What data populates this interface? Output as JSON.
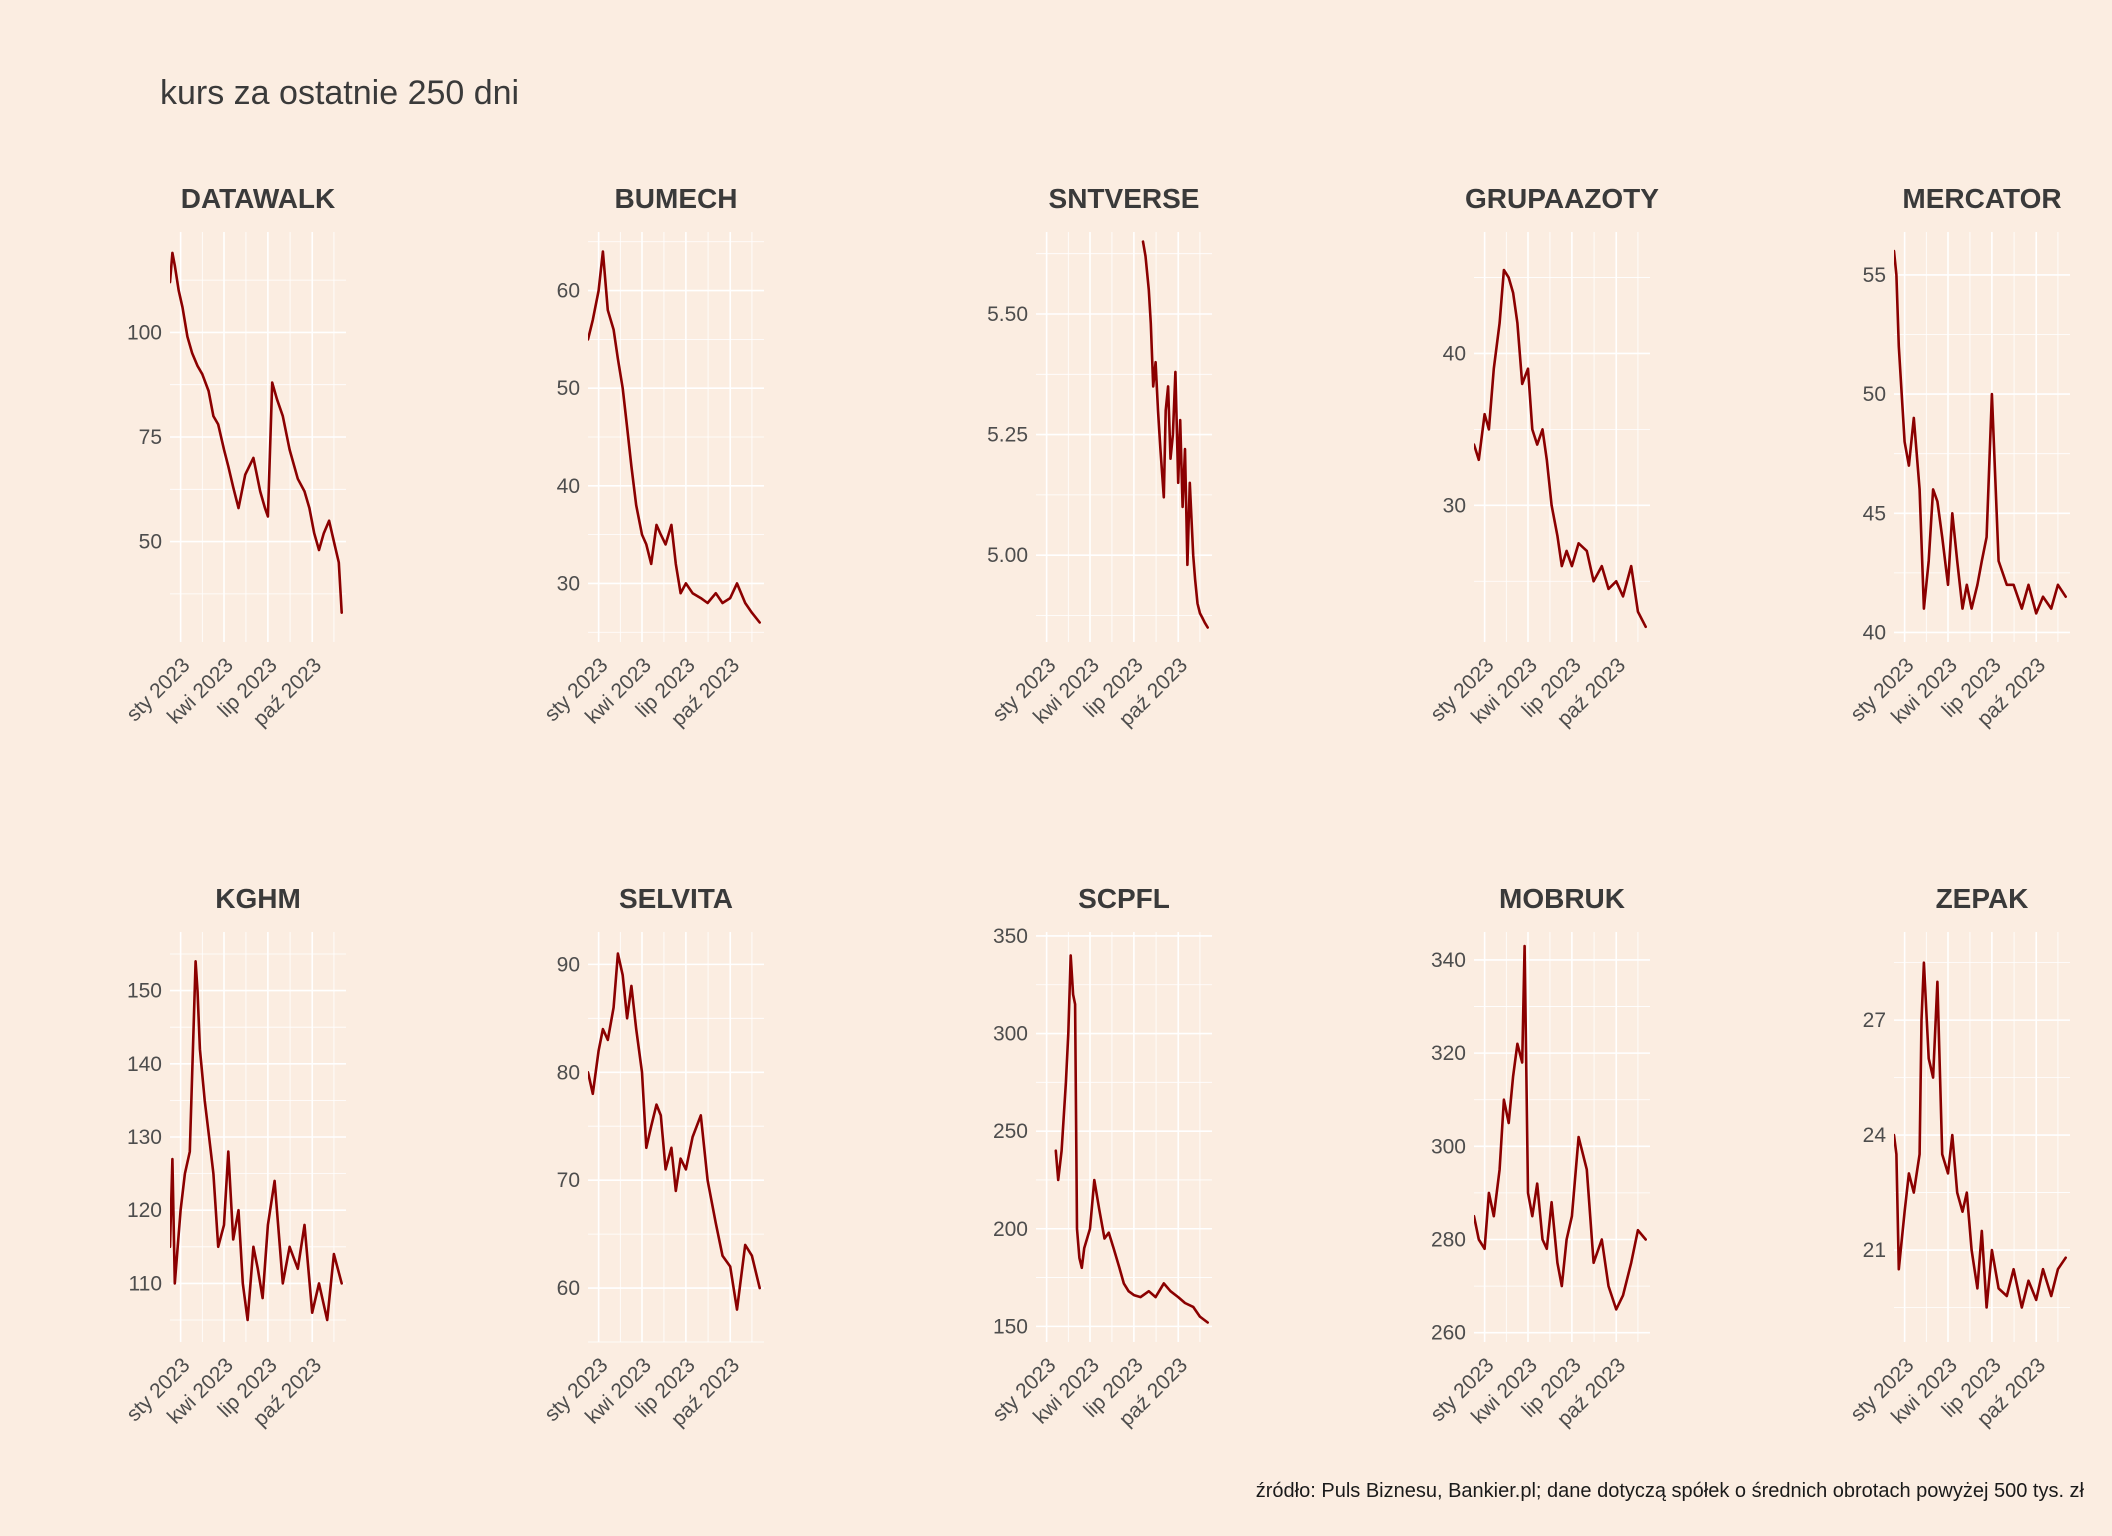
{
  "title": "kurs za ostatnie 250 dni",
  "caption": "źródło: Puls Biznesu, Bankier.pl; dane dotyczą spółek o średnich obrotach powyżej 500 tys. zł",
  "colors": {
    "background": "#FBEDE1",
    "series": "#8B0000",
    "grid": "#FFFFFF"
  },
  "chart_data": [
    {
      "type": "line",
      "title": "DATAWALK",
      "x_tick_labels": [
        "sty 2023",
        "kwi 2023",
        "lip 2023",
        "paź 2023"
      ],
      "x_tick_dates": [
        "2023-01-01",
        "2023-04-01",
        "2023-07-01",
        "2023-10-01"
      ],
      "xlim": [
        "2022-12-10",
        "2023-12-10"
      ],
      "ylim": [
        26,
        124
      ],
      "y_ticks": [
        50,
        75,
        100
      ],
      "series": [
        {
          "x": [
            "2022-12-10",
            "2022-12-15",
            "2022-12-20",
            "2022-12-28",
            "2023-01-05",
            "2023-01-15",
            "2023-01-25",
            "2023-02-05",
            "2023-02-15",
            "2023-02-28",
            "2023-03-10",
            "2023-03-20",
            "2023-04-01",
            "2023-04-10",
            "2023-04-20",
            "2023-05-01",
            "2023-05-15",
            "2023-06-01",
            "2023-06-15",
            "2023-06-25",
            "2023-07-01",
            "2023-07-10",
            "2023-07-20",
            "2023-08-01",
            "2023-08-15",
            "2023-09-01",
            "2023-09-15",
            "2023-09-25",
            "2023-10-05",
            "2023-10-15",
            "2023-10-25",
            "2023-11-05",
            "2023-11-15",
            "2023-11-25",
            "2023-12-01"
          ],
          "y": [
            112,
            119,
            116,
            110,
            106,
            99,
            95,
            92,
            90,
            86,
            80,
            78,
            72,
            68,
            63,
            58,
            66,
            70,
            62,
            58,
            56,
            88,
            84,
            80,
            72,
            65,
            62,
            58,
            52,
            48,
            52,
            55,
            50,
            45,
            33
          ]
        }
      ]
    },
    {
      "type": "line",
      "title": "BUMECH",
      "x_tick_labels": [
        "sty 2023",
        "kwi 2023",
        "lip 2023",
        "paź 2023"
      ],
      "x_tick_dates": [
        "2023-01-01",
        "2023-04-01",
        "2023-07-01",
        "2023-10-01"
      ],
      "xlim": [
        "2022-12-10",
        "2023-12-10"
      ],
      "ylim": [
        24,
        66
      ],
      "y_ticks": [
        30,
        40,
        50,
        60
      ],
      "series": [
        {
          "x": [
            "2022-12-10",
            "2022-12-20",
            "2023-01-01",
            "2023-01-10",
            "2023-01-20",
            "2023-02-01",
            "2023-02-10",
            "2023-02-20",
            "2023-03-01",
            "2023-03-10",
            "2023-03-20",
            "2023-04-01",
            "2023-04-10",
            "2023-04-20",
            "2023-05-01",
            "2023-05-10",
            "2023-05-20",
            "2023-06-01",
            "2023-06-10",
            "2023-06-20",
            "2023-07-01",
            "2023-07-15",
            "2023-08-01",
            "2023-08-15",
            "2023-09-01",
            "2023-09-15",
            "2023-10-01",
            "2023-10-15",
            "2023-11-01",
            "2023-11-15",
            "2023-12-01"
          ],
          "y": [
            55,
            57,
            60,
            64,
            58,
            56,
            53,
            50,
            46,
            42,
            38,
            35,
            34,
            32,
            36,
            35,
            34,
            36,
            32,
            29,
            30,
            29,
            28.5,
            28,
            29,
            28,
            28.5,
            30,
            28,
            27,
            26
          ]
        }
      ]
    },
    {
      "type": "line",
      "title": "SNTVERSE",
      "x_tick_labels": [
        "sty 2023",
        "kwi 2023",
        "lip 2023",
        "paź 2023"
      ],
      "x_tick_dates": [
        "2023-01-01",
        "2023-04-01",
        "2023-07-01",
        "2023-10-01"
      ],
      "xlim": [
        "2022-12-10",
        "2023-12-10"
      ],
      "ylim": [
        4.82,
        5.67
      ],
      "y_ticks": [
        5.0,
        5.25,
        5.5
      ],
      "series": [
        {
          "x": [
            "2023-07-20",
            "2023-07-25",
            "2023-08-01",
            "2023-08-05",
            "2023-08-10",
            "2023-08-15",
            "2023-08-20",
            "2023-08-25",
            "2023-09-01",
            "2023-09-05",
            "2023-09-10",
            "2023-09-15",
            "2023-09-20",
            "2023-09-25",
            "2023-10-01",
            "2023-10-05",
            "2023-10-10",
            "2023-10-15",
            "2023-10-20",
            "2023-10-25",
            "2023-11-01",
            "2023-11-05",
            "2023-11-10",
            "2023-11-15",
            "2023-11-20",
            "2023-11-25",
            "2023-12-01"
          ],
          "y": [
            5.65,
            5.62,
            5.55,
            5.48,
            5.35,
            5.4,
            5.3,
            5.22,
            5.12,
            5.3,
            5.35,
            5.2,
            5.25,
            5.38,
            5.15,
            5.28,
            5.1,
            5.22,
            4.98,
            5.15,
            5.0,
            4.95,
            4.9,
            4.88,
            4.87,
            4.86,
            4.85
          ]
        }
      ]
    },
    {
      "type": "line",
      "title": "GRUPAAZOTY",
      "x_tick_labels": [
        "sty 2023",
        "kwi 2023",
        "lip 2023",
        "paź 2023"
      ],
      "x_tick_dates": [
        "2023-01-01",
        "2023-04-01",
        "2023-07-01",
        "2023-10-01"
      ],
      "xlim": [
        "2022-12-10",
        "2023-12-10"
      ],
      "ylim": [
        21,
        48
      ],
      "y_ticks": [
        30,
        40
      ],
      "series": [
        {
          "x": [
            "2022-12-10",
            "2022-12-20",
            "2023-01-01",
            "2023-01-10",
            "2023-01-20",
            "2023-02-01",
            "2023-02-10",
            "2023-02-20",
            "2023-03-01",
            "2023-03-10",
            "2023-03-20",
            "2023-04-01",
            "2023-04-10",
            "2023-04-20",
            "2023-05-01",
            "2023-05-10",
            "2023-05-20",
            "2023-06-01",
            "2023-06-10",
            "2023-06-20",
            "2023-07-01",
            "2023-07-15",
            "2023-08-01",
            "2023-08-15",
            "2023-09-01",
            "2023-09-15",
            "2023-10-01",
            "2023-10-15",
            "2023-11-01",
            "2023-11-15",
            "2023-12-01"
          ],
          "y": [
            34,
            33,
            36,
            35,
            39,
            42,
            45.5,
            45,
            44,
            42,
            38,
            39,
            35,
            34,
            35,
            33,
            30,
            28,
            26,
            27,
            26,
            27.5,
            27,
            25,
            26,
            24.5,
            25,
            24,
            26,
            23,
            22
          ]
        }
      ]
    },
    {
      "type": "line",
      "title": "MERCATOR",
      "x_tick_labels": [
        "sty 2023",
        "kwi 2023",
        "lip 2023",
        "paź 2023"
      ],
      "x_tick_dates": [
        "2023-01-01",
        "2023-04-01",
        "2023-07-01",
        "2023-10-01"
      ],
      "xlim": [
        "2022-12-10",
        "2023-12-10"
      ],
      "ylim": [
        39.6,
        56.8
      ],
      "y_ticks": [
        40,
        45,
        50,
        55
      ],
      "series": [
        {
          "x": [
            "2022-12-10",
            "2022-12-15",
            "2022-12-20",
            "2023-01-01",
            "2023-01-10",
            "2023-01-20",
            "2023-02-01",
            "2023-02-10",
            "2023-02-20",
            "2023-03-01",
            "2023-03-10",
            "2023-03-20",
            "2023-04-01",
            "2023-04-10",
            "2023-04-20",
            "2023-05-01",
            "2023-05-10",
            "2023-05-20",
            "2023-06-01",
            "2023-06-10",
            "2023-06-20",
            "2023-07-01",
            "2023-07-15",
            "2023-08-01",
            "2023-08-15",
            "2023-09-01",
            "2023-09-15",
            "2023-10-01",
            "2023-10-15",
            "2023-11-01",
            "2023-11-15",
            "2023-12-01"
          ],
          "y": [
            56,
            55,
            52,
            48,
            47,
            49,
            46,
            41,
            43,
            46,
            45.5,
            44,
            42,
            45,
            43,
            41,
            42,
            41,
            42,
            43,
            44,
            50,
            43,
            42,
            42,
            41,
            42,
            40.8,
            41.5,
            41,
            42,
            41.5
          ]
        }
      ]
    },
    {
      "type": "line",
      "title": "KGHM",
      "x_tick_labels": [
        "sty 2023",
        "kwi 2023",
        "lip 2023",
        "paź 2023"
      ],
      "x_tick_dates": [
        "2023-01-01",
        "2023-04-01",
        "2023-07-01",
        "2023-10-01"
      ],
      "xlim": [
        "2022-12-10",
        "2023-12-10"
      ],
      "ylim": [
        102,
        158
      ],
      "y_ticks": [
        110,
        120,
        130,
        140,
        150
      ],
      "series": [
        {
          "x": [
            "2022-12-10",
            "2022-12-15",
            "2022-12-20",
            "2023-01-01",
            "2023-01-10",
            "2023-01-20",
            "2023-01-28",
            "2023-02-01",
            "2023-02-05",
            "2023-02-10",
            "2023-02-20",
            "2023-03-01",
            "2023-03-10",
            "2023-03-20",
            "2023-04-01",
            "2023-04-10",
            "2023-04-20",
            "2023-05-01",
            "2023-05-10",
            "2023-05-20",
            "2023-06-01",
            "2023-06-10",
            "2023-06-20",
            "2023-07-01",
            "2023-07-15",
            "2023-08-01",
            "2023-08-15",
            "2023-09-01",
            "2023-09-15",
            "2023-10-01",
            "2023-10-15",
            "2023-11-01",
            "2023-11-15",
            "2023-12-01"
          ],
          "y": [
            115,
            127,
            110,
            120,
            125,
            128,
            145,
            154,
            150,
            142,
            135,
            130,
            125,
            115,
            118,
            128,
            116,
            120,
            110,
            105,
            115,
            112,
            108,
            118,
            124,
            110,
            115,
            112,
            118,
            106,
            110,
            105,
            114,
            110
          ]
        }
      ]
    },
    {
      "type": "line",
      "title": "SELVITA",
      "x_tick_labels": [
        "sty 2023",
        "kwi 2023",
        "lip 2023",
        "paź 2023"
      ],
      "x_tick_dates": [
        "2023-01-01",
        "2023-04-01",
        "2023-07-01",
        "2023-10-01"
      ],
      "xlim": [
        "2022-12-10",
        "2023-12-10"
      ],
      "ylim": [
        55,
        93
      ],
      "y_ticks": [
        60,
        70,
        80,
        90
      ],
      "series": [
        {
          "x": [
            "2022-12-10",
            "2022-12-20",
            "2023-01-01",
            "2023-01-10",
            "2023-01-20",
            "2023-02-01",
            "2023-02-10",
            "2023-02-20",
            "2023-03-01",
            "2023-03-10",
            "2023-03-20",
            "2023-04-01",
            "2023-04-10",
            "2023-04-20",
            "2023-05-01",
            "2023-05-10",
            "2023-05-20",
            "2023-06-01",
            "2023-06-10",
            "2023-06-20",
            "2023-07-01",
            "2023-07-15",
            "2023-08-01",
            "2023-08-15",
            "2023-09-01",
            "2023-09-15",
            "2023-10-01",
            "2023-10-15",
            "2023-11-01",
            "2023-11-15",
            "2023-12-01"
          ],
          "y": [
            80,
            78,
            82,
            84,
            83,
            86,
            91,
            89,
            85,
            88,
            84,
            80,
            73,
            75,
            77,
            76,
            71,
            73,
            69,
            72,
            71,
            74,
            76,
            70,
            66,
            63,
            62,
            58,
            64,
            63,
            60
          ]
        }
      ]
    },
    {
      "type": "line",
      "title": "SCPFL",
      "x_tick_labels": [
        "sty 2023",
        "kwi 2023",
        "lip 2023",
        "paź 2023"
      ],
      "x_tick_dates": [
        "2023-01-01",
        "2023-04-01",
        "2023-07-01",
        "2023-10-01"
      ],
      "xlim": [
        "2022-12-10",
        "2023-12-10"
      ],
      "ylim": [
        142,
        352
      ],
      "y_ticks": [
        150,
        200,
        250,
        300,
        350
      ],
      "series": [
        {
          "x": [
            "2023-01-20",
            "2023-01-25",
            "2023-02-01",
            "2023-02-10",
            "2023-02-15",
            "2023-02-20",
            "2023-02-25",
            "2023-03-01",
            "2023-03-05",
            "2023-03-10",
            "2023-03-15",
            "2023-03-20",
            "2023-04-01",
            "2023-04-10",
            "2023-04-20",
            "2023-05-01",
            "2023-05-10",
            "2023-05-20",
            "2023-06-01",
            "2023-06-10",
            "2023-06-20",
            "2023-07-01",
            "2023-07-15",
            "2023-08-01",
            "2023-08-15",
            "2023-09-01",
            "2023-09-15",
            "2023-10-01",
            "2023-10-15",
            "2023-11-01",
            "2023-11-15",
            "2023-12-01"
          ],
          "y": [
            240,
            225,
            240,
            275,
            300,
            340,
            320,
            315,
            200,
            185,
            180,
            190,
            200,
            225,
            210,
            195,
            198,
            190,
            180,
            172,
            168,
            166,
            165,
            168,
            165,
            172,
            168,
            165,
            162,
            160,
            155,
            152
          ]
        }
      ]
    },
    {
      "type": "line",
      "title": "MOBRUK",
      "x_tick_labels": [
        "sty 2023",
        "kwi 2023",
        "lip 2023",
        "paź 2023"
      ],
      "x_tick_dates": [
        "2023-01-01",
        "2023-04-01",
        "2023-07-01",
        "2023-10-01"
      ],
      "xlim": [
        "2022-12-10",
        "2023-12-10"
      ],
      "ylim": [
        258,
        346
      ],
      "y_ticks": [
        260,
        280,
        300,
        320,
        340
      ],
      "series": [
        {
          "x": [
            "2022-12-10",
            "2022-12-20",
            "2023-01-01",
            "2023-01-10",
            "2023-01-20",
            "2023-02-01",
            "2023-02-10",
            "2023-02-20",
            "2023-03-01",
            "2023-03-10",
            "2023-03-20",
            "2023-03-25",
            "2023-04-01",
            "2023-04-10",
            "2023-04-20",
            "2023-05-01",
            "2023-05-10",
            "2023-05-20",
            "2023-06-01",
            "2023-06-10",
            "2023-06-20",
            "2023-07-01",
            "2023-07-15",
            "2023-08-01",
            "2023-08-15",
            "2023-09-01",
            "2023-09-15",
            "2023-10-01",
            "2023-10-15",
            "2023-11-01",
            "2023-11-15",
            "2023-12-01"
          ],
          "y": [
            285,
            280,
            278,
            290,
            285,
            295,
            310,
            305,
            315,
            322,
            318,
            343,
            290,
            285,
            292,
            280,
            278,
            288,
            275,
            270,
            280,
            285,
            302,
            295,
            275,
            280,
            270,
            265,
            268,
            275,
            282,
            280
          ]
        }
      ]
    },
    {
      "type": "line",
      "title": "ZEPAK",
      "x_tick_labels": [
        "sty 2023",
        "kwi 2023",
        "lip 2023",
        "paź 2023"
      ],
      "x_tick_dates": [
        "2023-01-01",
        "2023-04-01",
        "2023-07-01",
        "2023-10-01"
      ],
      "xlim": [
        "2022-12-10",
        "2023-12-10"
      ],
      "ylim": [
        18.6,
        29.3
      ],
      "y_ticks": [
        21,
        24,
        27
      ],
      "series": [
        {
          "x": [
            "2022-12-10",
            "2022-12-15",
            "2022-12-20",
            "2023-01-01",
            "2023-01-10",
            "2023-01-20",
            "2023-02-01",
            "2023-02-05",
            "2023-02-10",
            "2023-02-20",
            "2023-03-01",
            "2023-03-10",
            "2023-03-20",
            "2023-04-01",
            "2023-04-10",
            "2023-04-20",
            "2023-05-01",
            "2023-05-10",
            "2023-05-20",
            "2023-06-01",
            "2023-06-10",
            "2023-06-20",
            "2023-07-01",
            "2023-07-15",
            "2023-08-01",
            "2023-08-15",
            "2023-09-01",
            "2023-09-15",
            "2023-10-01",
            "2023-10-15",
            "2023-11-01",
            "2023-11-15",
            "2023-12-01"
          ],
          "y": [
            24,
            23.5,
            20.5,
            22,
            23,
            22.5,
            23.5,
            27,
            28.5,
            26,
            25.5,
            28,
            23.5,
            23,
            24,
            22.5,
            22,
            22.5,
            21,
            20,
            21.5,
            19.5,
            21,
            20,
            19.8,
            20.5,
            19.5,
            20.2,
            19.7,
            20.5,
            19.8,
            20.5,
            20.8
          ]
        }
      ]
    }
  ]
}
